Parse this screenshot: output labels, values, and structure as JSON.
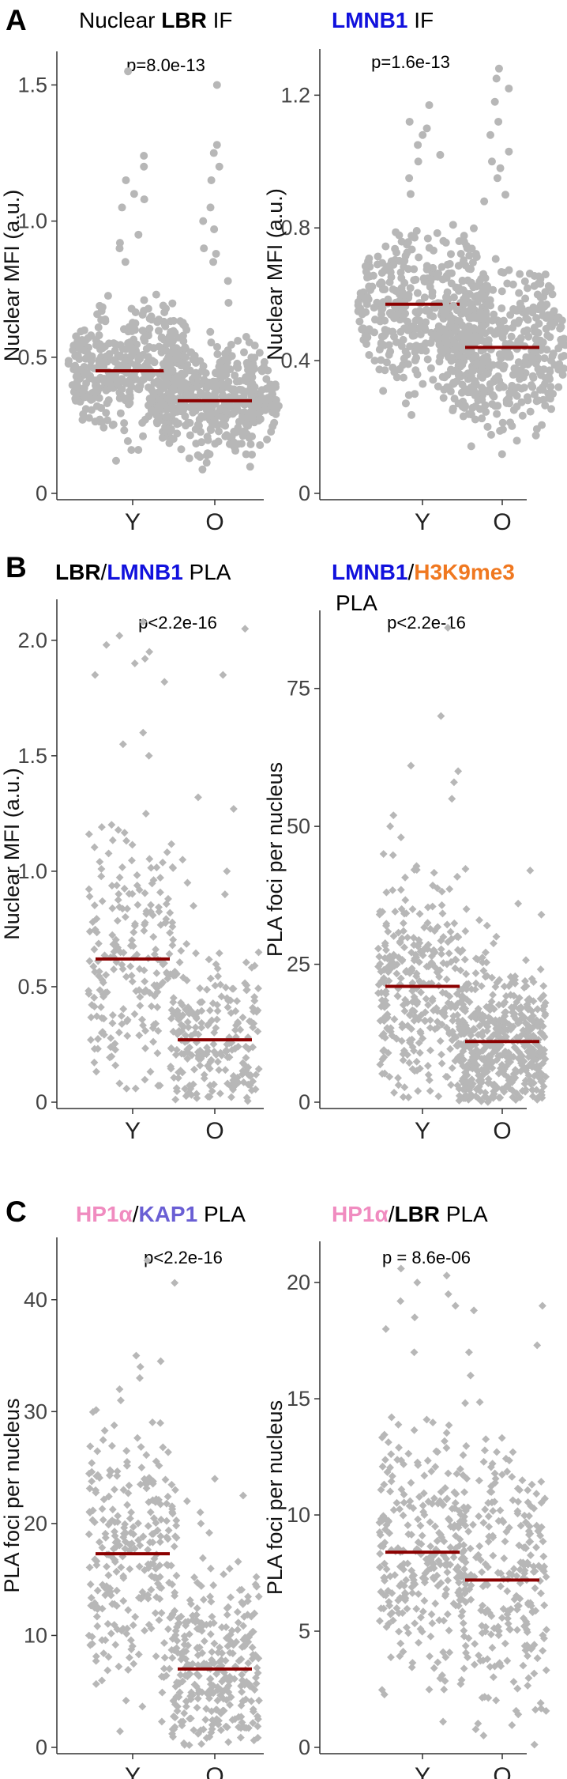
{
  "colors": {
    "point": "#b7b7b7",
    "median": "#8b0000",
    "blue": "#1111dd",
    "orange": "#f07820",
    "pink": "#f08cc0",
    "purple": "#6a5fd4"
  },
  "panels": [
    {
      "letter": "A"
    },
    {
      "letter": "B"
    },
    {
      "letter": "C"
    }
  ],
  "chart_data": [
    {
      "id": "A-left",
      "type": "scatter",
      "style": "beeswarm",
      "panel": "A",
      "title_parts": [
        {
          "text": "Nuclear ",
          "color": "#000000",
          "bold": false
        },
        {
          "text": "LBR",
          "color": "#000000",
          "bold": true
        },
        {
          "text": " IF",
          "color": "#000000",
          "bold": false
        }
      ],
      "pvalue": "p=8.0e-13",
      "ylabel": "Nuclear MFI (a.u.)",
      "categories": [
        "Y",
        "O"
      ],
      "yticks": [
        "0",
        "0.5",
        "1.0",
        "1.5"
      ],
      "yticks_values": [
        0,
        0.5,
        1.0,
        1.5
      ],
      "ylim": [
        0,
        1.6
      ],
      "series": [
        {
          "name": "Y",
          "median": 0.45,
          "min": 0.1,
          "max": 1.55,
          "n": 420,
          "q1": 0.36,
          "q3": 0.55,
          "outliers": [
            0.73,
            0.85,
            0.9,
            0.92,
            0.95,
            1.05,
            1.08,
            1.1,
            1.15,
            1.2,
            1.24,
            1.55
          ]
        },
        {
          "name": "O",
          "median": 0.34,
          "min": 0.05,
          "max": 1.5,
          "n": 460,
          "q1": 0.25,
          "q3": 0.42,
          "outliers": [
            0.7,
            0.78,
            0.85,
            0.88,
            0.9,
            0.97,
            1.0,
            1.05,
            1.15,
            1.2,
            1.25,
            1.28,
            1.5
          ]
        }
      ]
    },
    {
      "id": "A-right",
      "type": "scatter",
      "style": "beeswarm",
      "panel": "A",
      "title_parts": [
        {
          "text": "LMNB1",
          "color": "#1111dd",
          "bold": true
        },
        {
          "text": " IF",
          "color": "#000000",
          "bold": false
        }
      ],
      "pvalue": "p=1.6e-13",
      "ylabel": "Nuclear MFI (a.u.)",
      "categories": [
        "Y",
        "O"
      ],
      "yticks": [
        "0",
        "0.4",
        "0.8",
        "1.2"
      ],
      "yticks_values": [
        0,
        0.4,
        0.8,
        1.2
      ],
      "ylim": [
        0,
        1.32
      ],
      "series": [
        {
          "name": "Y",
          "median": 0.57,
          "min": 0.1,
          "max": 1.17,
          "n": 420,
          "q1": 0.47,
          "q3": 0.67,
          "outliers": [
            0.95,
            1.0,
            1.02,
            1.05,
            1.08,
            1.1,
            1.12,
            1.17
          ]
        },
        {
          "name": "O",
          "median": 0.44,
          "min": 0.07,
          "max": 1.28,
          "n": 460,
          "q1": 0.34,
          "q3": 0.55,
          "outliers": [
            0.88,
            0.9,
            0.95,
            0.98,
            1.0,
            1.03,
            1.08,
            1.12,
            1.18,
            1.22,
            1.25,
            1.28
          ]
        }
      ]
    },
    {
      "id": "B-left",
      "type": "scatter",
      "style": "jitter",
      "panel": "B",
      "title_parts": [
        {
          "text": "LBR",
          "color": "#000000",
          "bold": true
        },
        {
          "text": "/",
          "color": "#000000",
          "bold": false
        },
        {
          "text": "LMNB1",
          "color": "#1111dd",
          "bold": true
        },
        {
          "text": " PLA",
          "color": "#000000",
          "bold": false
        }
      ],
      "pvalue": "p<2.2e-16",
      "ylabel": "Nuclear MFI (a.u.)",
      "categories": [
        "Y",
        "O"
      ],
      "yticks": [
        "0",
        "0.5",
        "1.0",
        "1.5",
        "2.0"
      ],
      "yticks_values": [
        0,
        0.5,
        1.0,
        1.5,
        2.0
      ],
      "ylim": [
        0,
        2.15
      ],
      "series": [
        {
          "name": "Y",
          "median": 0.62,
          "min": 0.03,
          "max": 2.08,
          "n": 230,
          "q1": 0.4,
          "q3": 0.9,
          "outliers": [
            1.5,
            1.55,
            1.6,
            1.82,
            1.85,
            1.9,
            1.92,
            1.95,
            1.98,
            2.02,
            2.08
          ]
        },
        {
          "name": "O",
          "median": 0.27,
          "min": 0.0,
          "max": 2.05,
          "n": 230,
          "q1": 0.12,
          "q3": 0.42,
          "outliers": [
            0.85,
            0.9,
            0.95,
            1.0,
            1.05,
            1.27,
            1.32,
            1.85,
            2.05
          ]
        }
      ]
    },
    {
      "id": "B-right",
      "type": "scatter",
      "style": "jitter",
      "panel": "B",
      "title_parts": [
        {
          "text": "LMNB1",
          "color": "#1111dd",
          "bold": true
        },
        {
          "text": "/",
          "color": "#000000",
          "bold": false
        },
        {
          "text": "H3K9me3",
          "color": "#f07820",
          "bold": true
        }
      ],
      "title_line2": "PLA",
      "pvalue": "p<2.2e-16",
      "ylabel": "PLA foci per nucleus",
      "categories": [
        "Y",
        "O"
      ],
      "yticks": [
        "0",
        "25",
        "50",
        "75"
      ],
      "yticks_values": [
        0,
        25,
        50,
        75
      ],
      "ylim": [
        0,
        88
      ],
      "series": [
        {
          "name": "Y",
          "median": 21,
          "min": 0,
          "max": 86,
          "n": 330,
          "q1": 12,
          "q3": 30,
          "outliers": [
            45,
            48,
            50,
            52,
            55,
            58,
            60,
            61,
            70,
            86
          ]
        },
        {
          "name": "O",
          "median": 11,
          "min": 0,
          "max": 42,
          "n": 470,
          "q1": 5,
          "q3": 17,
          "outliers": [
            30,
            31,
            32,
            33,
            34,
            35,
            36,
            42
          ]
        }
      ]
    },
    {
      "id": "C-left",
      "type": "scatter",
      "style": "jitter",
      "panel": "C",
      "title_parts": [
        {
          "text": "HP1α",
          "color": "#f08cc0",
          "bold": true
        },
        {
          "text": "/",
          "color": "#000000",
          "bold": false
        },
        {
          "text": "KAP1",
          "color": "#6a5fd4",
          "bold": true
        },
        {
          "text": " PLA",
          "color": "#000000",
          "bold": false
        }
      ],
      "pvalue": "p<2.2e-16",
      "ylabel": "PLA foci per nucleus",
      "categories": [
        "Y",
        "O"
      ],
      "yticks": [
        "0",
        "10",
        "20",
        "30",
        "40"
      ],
      "yticks_values": [
        0,
        10,
        20,
        30,
        40
      ],
      "ylim": [
        0,
        45
      ],
      "series": [
        {
          "name": "Y",
          "median": 17.3,
          "min": 0,
          "max": 43.5,
          "n": 280,
          "q1": 12,
          "q3": 23,
          "outliers": [
            31,
            32,
            33,
            34,
            34.5,
            35,
            41.5,
            43.5
          ]
        },
        {
          "name": "O",
          "median": 7,
          "min": 0,
          "max": 24,
          "n": 300,
          "q1": 3,
          "q3": 11,
          "outliers": [
            20,
            21,
            22,
            22.5,
            23,
            24
          ]
        }
      ]
    },
    {
      "id": "C-right",
      "type": "scatter",
      "style": "jitter",
      "panel": "C",
      "title_parts": [
        {
          "text": "HP1α",
          "color": "#f08cc0",
          "bold": true
        },
        {
          "text": "/",
          "color": "#000000",
          "bold": false
        },
        {
          "text": "LBR",
          "color": "#000000",
          "bold": true
        },
        {
          "text": " PLA",
          "color": "#000000",
          "bold": false
        }
      ],
      "pvalue": "p = 8.6e-06",
      "ylabel": "PLA foci per nucleus",
      "categories": [
        "Y",
        "O"
      ],
      "yticks": [
        "0",
        "5",
        "10",
        "15",
        "20"
      ],
      "yticks_values": [
        0,
        5,
        10,
        15,
        20
      ],
      "ylim": [
        0,
        21.5
      ],
      "series": [
        {
          "name": "Y",
          "median": 8.4,
          "min": 0.8,
          "max": 20.6,
          "n": 300,
          "q1": 6,
          "q3": 11,
          "outliers": [
            17,
            18,
            18.5,
            19,
            19.2,
            19.5,
            20,
            20.3,
            20.6
          ]
        },
        {
          "name": "O",
          "median": 7.2,
          "min": 0,
          "max": 19,
          "n": 260,
          "q1": 4.5,
          "q3": 10,
          "outliers": [
            16,
            17,
            17.3,
            18.8,
            19
          ]
        }
      ]
    }
  ]
}
